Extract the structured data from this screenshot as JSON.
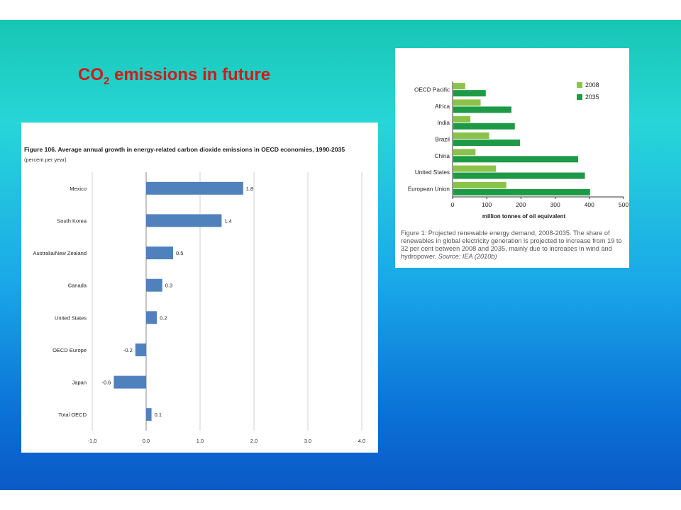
{
  "slide": {
    "title_prefix": "CO",
    "title_sub": "2",
    "title_suffix": " emissions in future"
  },
  "colors": {
    "left_bar": "#4f81bd",
    "light_green": "#8bc34a",
    "dark_green": "#1e9a47",
    "title_red": "#d11a1a"
  },
  "chart_data": [
    {
      "type": "bar",
      "orientation": "horizontal",
      "title": "Figure 106. Average annual growth in energy-related carbon dioxide emissions in OECD economies, 1990-2035",
      "subtitle": "(percent per year)",
      "categories": [
        "Mexico",
        "South Korea",
        "Australia/New Zealand",
        "Canada",
        "United States",
        "OECD Europe",
        "Japan",
        "Total OECD"
      ],
      "values": [
        1.8,
        1.4,
        0.5,
        0.3,
        0.2,
        -0.2,
        -0.6,
        0.1
      ],
      "value_labels": [
        "1.8",
        "1.4",
        "0.5",
        "0.3",
        "0.2",
        "-0.2",
        "-0.6",
        "0.1"
      ],
      "xlim": [
        -1.0,
        4.0
      ],
      "xticks": [
        "-1.0",
        "0.0",
        "1.0",
        "2.0",
        "3.0",
        "4.0"
      ],
      "grid": "vertical"
    },
    {
      "type": "bar",
      "orientation": "horizontal",
      "categories": [
        "OECD Pacific",
        "Africa",
        "India",
        "Brazil",
        "China",
        "United States",
        "European Union"
      ],
      "series": [
        {
          "name": "2008",
          "values": [
            35,
            80,
            50,
            105,
            65,
            125,
            155
          ]
        },
        {
          "name": "2035",
          "values": [
            95,
            170,
            180,
            195,
            365,
            385,
            400
          ]
        }
      ],
      "xlim": [
        0,
        500
      ],
      "xticks": [
        "0",
        "100",
        "200",
        "300",
        "400",
        "500"
      ],
      "xlabel": "million tonnes of oil equivalent",
      "legend": "top-right"
    }
  ],
  "caption": {
    "text": "Figure 1: Projected renewable energy demand, 2008-2035. The share of renewables in global electricity generation is projected to increase from 19 to 32 per cent between 2008 and 2035, mainly due to increases in wind and hydropower. ",
    "source": "Source: IEA (2010b)"
  }
}
